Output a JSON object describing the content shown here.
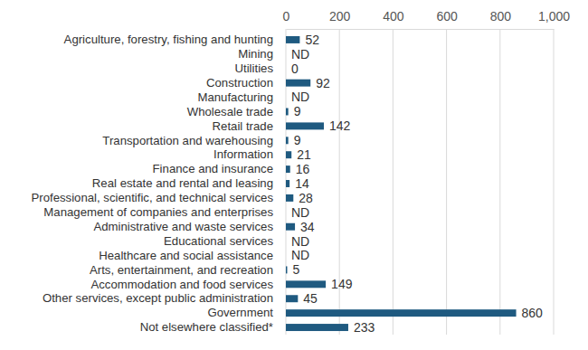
{
  "chart_data": {
    "type": "bar",
    "orientation": "horizontal",
    "categories": [
      "Agriculture, forestry, fishing and hunting",
      "Mining",
      "Utilities",
      "Construction",
      "Manufacturing",
      "Wholesale trade",
      "Retail trade",
      "Transportation and warehousing",
      "Information",
      "Finance and insurance",
      "Real estate and rental and leasing",
      "Professional, scientific, and technical services",
      "Management of companies and enterprises",
      "Administrative and waste services",
      "Educational services",
      "Healthcare and social assistance",
      "Arts, entertainment, and recreation",
      "Accommodation and food services",
      "Other services, except public administration",
      "Government",
      "Not elsewhere classified*"
    ],
    "values": [
      52,
      null,
      0,
      92,
      null,
      9,
      142,
      9,
      21,
      16,
      14,
      28,
      null,
      34,
      null,
      null,
      5,
      149,
      45,
      860,
      233
    ],
    "value_labels": [
      "52",
      "ND",
      "0",
      "92",
      "ND",
      "9",
      "142",
      "9",
      "21",
      "16",
      "14",
      "28",
      "ND",
      "34",
      "ND",
      "ND",
      "5",
      "149",
      "45",
      "860",
      "233"
    ],
    "color": "#1f5a80",
    "xlim": [
      0,
      1000
    ],
    "xticks": [
      0,
      200,
      400,
      600,
      800,
      {
        "value": 1000,
        "label": "1,000"
      }
    ],
    "grid": true,
    "data_labels": true
  }
}
